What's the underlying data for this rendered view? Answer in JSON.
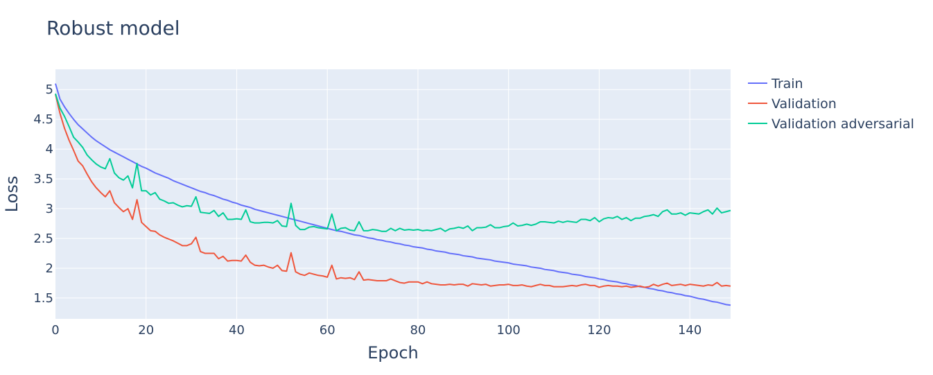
{
  "chart_data": {
    "type": "line",
    "title": "Robust model",
    "xlabel": "Epoch",
    "ylabel": "Loss",
    "xlim": [
      0,
      149
    ],
    "ylim": [
      1.15,
      5.34
    ],
    "x_ticks": [
      0,
      20,
      40,
      60,
      80,
      100,
      120,
      140
    ],
    "y_ticks": [
      1.5,
      2,
      2.5,
      3,
      3.5,
      4,
      4.5,
      5
    ],
    "x_tick_labels": [
      "0",
      "20",
      "40",
      "60",
      "80",
      "100",
      "120",
      "140"
    ],
    "y_tick_labels": [
      "1.5",
      "2",
      "2.5",
      "3",
      "3.5",
      "4",
      "4.5",
      "5"
    ],
    "grid": true,
    "legend_position": "top-right outside",
    "series": [
      {
        "name": "Train",
        "color": "#636efa",
        "x_step": 1,
        "values": [
          5.1,
          4.84,
          4.71,
          4.6,
          4.5,
          4.41,
          4.34,
          4.27,
          4.2,
          4.14,
          4.09,
          4.04,
          3.99,
          3.95,
          3.91,
          3.87,
          3.83,
          3.79,
          3.75,
          3.71,
          3.68,
          3.64,
          3.6,
          3.57,
          3.54,
          3.51,
          3.47,
          3.44,
          3.41,
          3.38,
          3.35,
          3.32,
          3.29,
          3.27,
          3.24,
          3.22,
          3.19,
          3.16,
          3.14,
          3.11,
          3.09,
          3.06,
          3.04,
          3.02,
          2.99,
          2.97,
          2.95,
          2.93,
          2.91,
          2.89,
          2.87,
          2.85,
          2.83,
          2.81,
          2.79,
          2.77,
          2.75,
          2.73,
          2.71,
          2.69,
          2.67,
          2.65,
          2.63,
          2.62,
          2.6,
          2.58,
          2.56,
          2.55,
          2.53,
          2.51,
          2.5,
          2.48,
          2.47,
          2.45,
          2.44,
          2.42,
          2.41,
          2.39,
          2.38,
          2.36,
          2.35,
          2.34,
          2.32,
          2.31,
          2.29,
          2.28,
          2.27,
          2.25,
          2.24,
          2.23,
          2.21,
          2.2,
          2.19,
          2.17,
          2.16,
          2.15,
          2.14,
          2.12,
          2.11,
          2.1,
          2.09,
          2.07,
          2.06,
          2.05,
          2.04,
          2.02,
          2.01,
          2.0,
          1.98,
          1.97,
          1.96,
          1.94,
          1.93,
          1.92,
          1.9,
          1.89,
          1.88,
          1.86,
          1.85,
          1.84,
          1.82,
          1.81,
          1.79,
          1.78,
          1.77,
          1.75,
          1.74,
          1.72,
          1.71,
          1.69,
          1.68,
          1.66,
          1.65,
          1.63,
          1.62,
          1.6,
          1.59,
          1.57,
          1.56,
          1.54,
          1.53,
          1.51,
          1.49,
          1.48,
          1.46,
          1.44,
          1.43,
          1.41,
          1.39,
          1.38
        ]
      },
      {
        "name": "Validation",
        "color": "#ef553b",
        "x_step": 1,
        "values": [
          4.92,
          4.6,
          4.35,
          4.15,
          3.98,
          3.8,
          3.72,
          3.58,
          3.45,
          3.35,
          3.27,
          3.2,
          3.3,
          3.1,
          3.02,
          2.95,
          3.0,
          2.82,
          3.15,
          2.77,
          2.7,
          2.63,
          2.62,
          2.56,
          2.52,
          2.49,
          2.46,
          2.42,
          2.38,
          2.38,
          2.41,
          2.52,
          2.28,
          2.25,
          2.25,
          2.25,
          2.16,
          2.2,
          2.12,
          2.13,
          2.13,
          2.12,
          2.22,
          2.1,
          2.05,
          2.04,
          2.05,
          2.02,
          2.0,
          2.05,
          1.96,
          1.95,
          2.26,
          1.94,
          1.9,
          1.88,
          1.92,
          1.9,
          1.88,
          1.87,
          1.85,
          2.05,
          1.82,
          1.84,
          1.83,
          1.84,
          1.81,
          1.94,
          1.8,
          1.81,
          1.8,
          1.79,
          1.79,
          1.79,
          1.82,
          1.79,
          1.76,
          1.75,
          1.77,
          1.77,
          1.77,
          1.74,
          1.77,
          1.74,
          1.73,
          1.72,
          1.72,
          1.73,
          1.72,
          1.73,
          1.73,
          1.7,
          1.74,
          1.73,
          1.72,
          1.73,
          1.7,
          1.71,
          1.72,
          1.72,
          1.73,
          1.71,
          1.71,
          1.72,
          1.7,
          1.69,
          1.71,
          1.73,
          1.71,
          1.71,
          1.69,
          1.69,
          1.69,
          1.7,
          1.71,
          1.7,
          1.72,
          1.73,
          1.71,
          1.71,
          1.68,
          1.7,
          1.71,
          1.7,
          1.7,
          1.69,
          1.7,
          1.68,
          1.69,
          1.7,
          1.68,
          1.69,
          1.73,
          1.7,
          1.73,
          1.75,
          1.71,
          1.72,
          1.73,
          1.71,
          1.73,
          1.72,
          1.71,
          1.7,
          1.72,
          1.71,
          1.76,
          1.7,
          1.71,
          1.7
        ]
      },
      {
        "name": "Validation adversarial",
        "color": "#00cc96",
        "x_step": 1,
        "values": [
          4.93,
          4.69,
          4.55,
          4.38,
          4.2,
          4.12,
          4.03,
          3.9,
          3.82,
          3.75,
          3.7,
          3.67,
          3.84,
          3.6,
          3.52,
          3.48,
          3.55,
          3.35,
          3.76,
          3.3,
          3.3,
          3.23,
          3.27,
          3.16,
          3.13,
          3.09,
          3.1,
          3.06,
          3.03,
          3.05,
          3.04,
          3.2,
          2.94,
          2.93,
          2.92,
          2.97,
          2.87,
          2.93,
          2.82,
          2.82,
          2.83,
          2.82,
          2.98,
          2.78,
          2.76,
          2.76,
          2.77,
          2.77,
          2.76,
          2.8,
          2.71,
          2.7,
          3.09,
          2.72,
          2.65,
          2.65,
          2.69,
          2.7,
          2.68,
          2.67,
          2.66,
          2.91,
          2.63,
          2.67,
          2.68,
          2.64,
          2.63,
          2.78,
          2.63,
          2.63,
          2.65,
          2.64,
          2.62,
          2.62,
          2.67,
          2.63,
          2.67,
          2.64,
          2.65,
          2.64,
          2.65,
          2.63,
          2.64,
          2.63,
          2.65,
          2.67,
          2.62,
          2.66,
          2.67,
          2.69,
          2.67,
          2.71,
          2.63,
          2.68,
          2.68,
          2.69,
          2.73,
          2.68,
          2.68,
          2.7,
          2.71,
          2.76,
          2.71,
          2.72,
          2.74,
          2.72,
          2.74,
          2.78,
          2.78,
          2.77,
          2.76,
          2.79,
          2.77,
          2.79,
          2.78,
          2.77,
          2.82,
          2.82,
          2.8,
          2.85,
          2.78,
          2.83,
          2.85,
          2.84,
          2.87,
          2.82,
          2.85,
          2.8,
          2.84,
          2.84,
          2.87,
          2.88,
          2.9,
          2.87,
          2.95,
          2.98,
          2.91,
          2.91,
          2.93,
          2.89,
          2.93,
          2.92,
          2.91,
          2.95,
          2.98,
          2.91,
          3.01,
          2.93,
          2.95,
          2.97
        ]
      }
    ]
  }
}
